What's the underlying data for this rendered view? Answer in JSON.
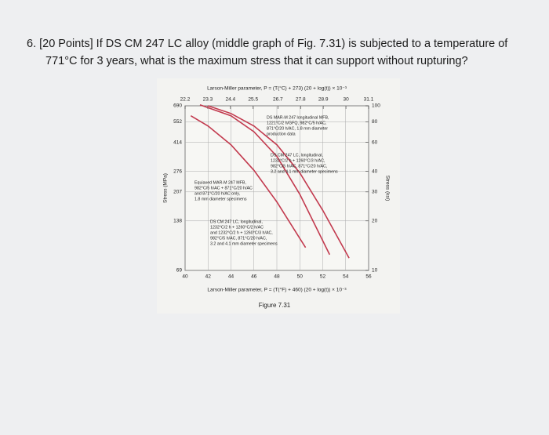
{
  "question": [
    "6.  [20 Points] If DS CM 247 LC alloy (middle graph of Fig. 7.31) is subjected to a temperature of",
    "771°C for 3 years, what is the maximum stress that it can support without rupturing?"
  ],
  "chart_data": {
    "type": "line",
    "x2label": "Larson-Miller parameter, P = (T(°C) + 273) (20 + log(t)) × 10⁻³",
    "xlabel": "Larson-Miller parameter, P = (T(°F) + 460) (20 + log(t)) × 10⁻³",
    "ylabel": "Stress (MPa)",
    "y2label": "Stress (ksi)",
    "xlim": [
      40,
      56
    ],
    "xticks": [
      40,
      42,
      44,
      46,
      48,
      50,
      52,
      54,
      56
    ],
    "x2lim": [
      22.2,
      31.1
    ],
    "x2ticks": [
      22.2,
      23.3,
      24.4,
      25.5,
      26.7,
      27.8,
      28.9,
      30,
      31.1
    ],
    "ylim": [
      69,
      690
    ],
    "yticks": [
      69,
      138,
      207,
      276,
      414,
      552,
      690
    ],
    "y2lim": [
      10,
      100
    ],
    "y2ticks": [
      10,
      20,
      30,
      40,
      60,
      80,
      100
    ],
    "log_scale": true,
    "grid": true,
    "series": [
      {
        "color": "#c23a4e",
        "x": [
          41.3,
          44,
          46,
          48,
          50,
          52.6
        ],
        "values": [
          700,
          600,
          480,
          340,
          200,
          86
        ]
      },
      {
        "color": "#c23a4e",
        "x": [
          42,
          44,
          46,
          48,
          50,
          52,
          54.3
        ],
        "values": [
          690,
          620,
          520,
          400,
          270,
          160,
          82
        ]
      },
      {
        "color": "#c23a4e",
        "x": [
          40.5,
          42,
          44,
          46,
          48,
          50.5
        ],
        "values": [
          600,
          520,
          400,
          280,
          180,
          95
        ]
      }
    ],
    "annotations": [
      [
        "DS MAR-M 247 longitudinal MFB,",
        "1221°C/2 h/GFQ, 982°C/5 h/AC,",
        "871°C/20 h/AC, 1.8 mm diameter",
        "production data"
      ],
      [
        "DS CM 247 LC, longitudinal,",
        "1232°C/2 h + 1260°C/3 h/AC,",
        "982°C/5 h/AC, 871°C/20 h/AC,",
        "3.2 and 4.1 mm diameter specimens"
      ],
      [
        "Equiaxed MAR-M 247 MFB,",
        "982°C/5 h/AC + 871°C/20 h/AC",
        "and 871°C/20 h/AC only,",
        "1.8 mm diameter specimens"
      ],
      [
        "DS CM 247 LC, longitudinal,",
        "1232°C/2 h + 1260°C/2 h/AC",
        "and 1232°C/2 h + 1260°C/3 h/AC,",
        "982°C/5 h/AC, 871°C/20 h/AC,",
        "3.2 and 4.1 mm diameter specimens"
      ]
    ]
  },
  "caption": "Figure 7.31"
}
